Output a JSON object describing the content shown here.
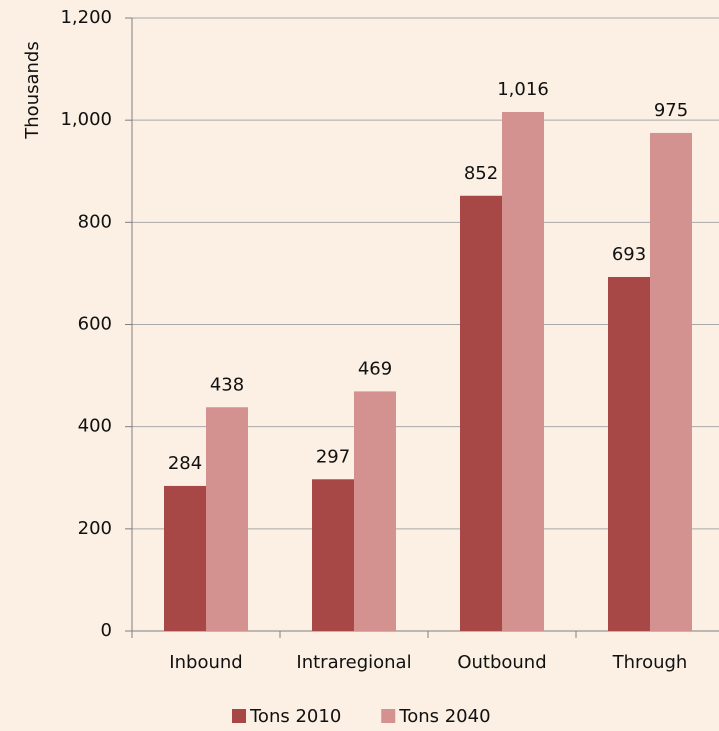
{
  "chart_data": {
    "type": "bar",
    "y_label": "Thousands",
    "categories": [
      "Inbound",
      "Intraregional",
      "Outbound",
      "Through"
    ],
    "series": [
      {
        "name": "Tons 2010",
        "color": "#a84846",
        "values": [
          284,
          297,
          852,
          693
        ]
      },
      {
        "name": "Tons 2040",
        "color": "#d39190",
        "values": [
          438,
          469,
          1016,
          975
        ],
        "value_labels": [
          "438",
          "469",
          "1,016",
          "975"
        ]
      }
    ],
    "ylim": [
      0,
      1200
    ],
    "yticks": [
      0,
      200,
      400,
      600,
      800,
      {
        "value": 1000,
        "label": "1,000"
      },
      {
        "value": 1200,
        "label": "1,200"
      }
    ],
    "grid": true,
    "legend": "bottom"
  }
}
